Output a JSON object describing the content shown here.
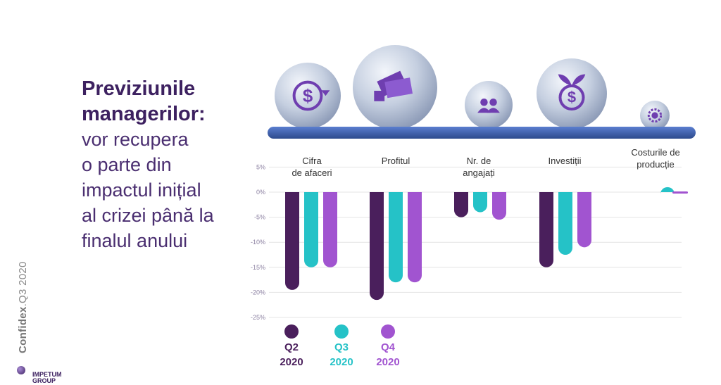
{
  "heading": {
    "bold": "Previziunile managerilor:",
    "text": "vor recupera\no parte din\nimpactul inițial\nal crizei până la\nfinalul anului"
  },
  "brand": {
    "confidex": "Confidex",
    "edition": ".Q3 2020",
    "logo": "IMPETUM\nGROUP"
  },
  "colors": {
    "Q2": "#4a1f5c",
    "Q3": "#25c2c7",
    "Q4": "#a154d0",
    "rail": "#3b5fa8",
    "text": "#3d2160"
  },
  "icons": [
    "dollar-cycle-icon",
    "cash-hand-icon",
    "people-icon",
    "dollar-plant-icon",
    "gear-dollar-icon"
  ],
  "legend": [
    {
      "q": "Q2",
      "year": "2020"
    },
    {
      "q": "Q3",
      "year": "2020"
    },
    {
      "q": "Q4",
      "year": "2020"
    }
  ],
  "chart_data": {
    "type": "bar",
    "categories": [
      "Cifra\nde afaceri",
      "Profitul",
      "Nr. de\nangajați",
      "Investiții",
      "Costurile de\nproducție"
    ],
    "series": [
      {
        "name": "Q2 2020",
        "values": [
          -19.5,
          -21.5,
          -5,
          -15,
          0
        ]
      },
      {
        "name": "Q3 2020",
        "values": [
          -15,
          -18,
          -4,
          -12.5,
          1
        ]
      },
      {
        "name": "Q4 2020",
        "values": [
          -15,
          -18,
          -5.5,
          -11,
          0
        ]
      }
    ],
    "yticks": [
      "5%",
      "0%",
      "-5%",
      "-10%",
      "-15%",
      "-20%",
      "-25%"
    ],
    "ylim": [
      -25,
      5
    ],
    "grid": true,
    "legend_position": "bottom"
  }
}
